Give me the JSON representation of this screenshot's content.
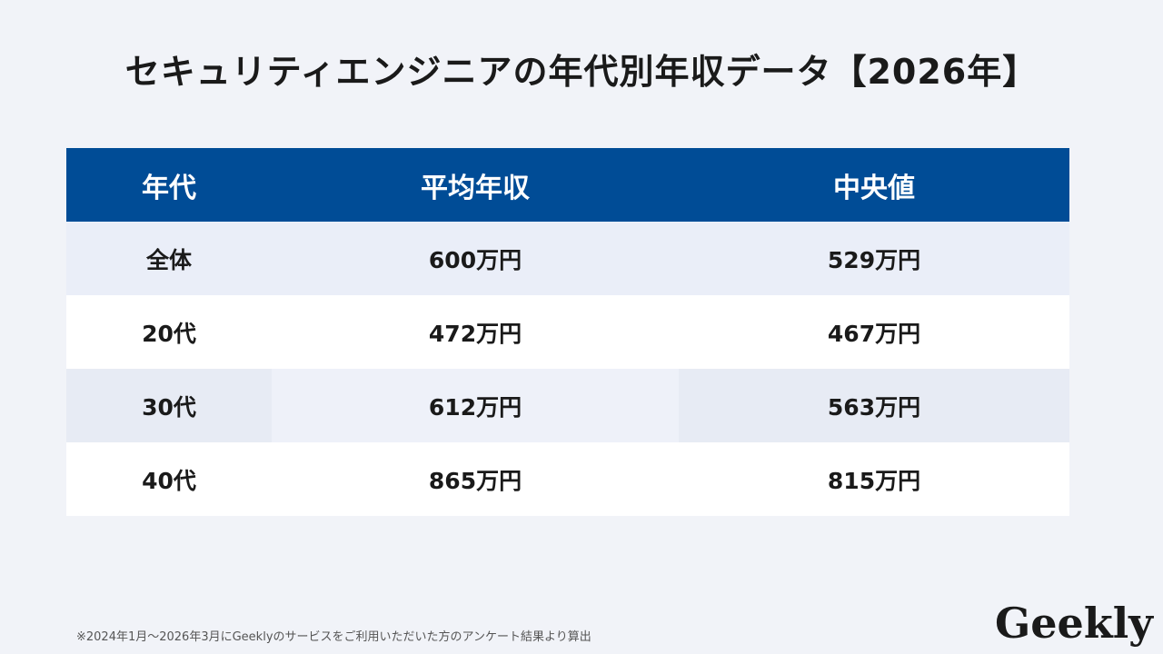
{
  "title": "セキュリティエンジニアの年代別年収データ【2026年】",
  "table": {
    "headers": [
      "年代",
      "平均年収",
      "中央値"
    ],
    "rows": [
      [
        "全体",
        "600万円",
        "529万円"
      ],
      [
        "20代",
        "472万円",
        "467万円"
      ],
      [
        "30代",
        "612万円",
        "563万円"
      ],
      [
        "40代",
        "865万円",
        "815万円"
      ]
    ]
  },
  "footnote": "※2024年1月～2026年3月にGeeklyのサービスをご利用いただいた方のアンケート結果より算出",
  "logo": "Geekly",
  "colors": {
    "header_bg": "#004c96",
    "page_bg": "#f1f3f8"
  }
}
